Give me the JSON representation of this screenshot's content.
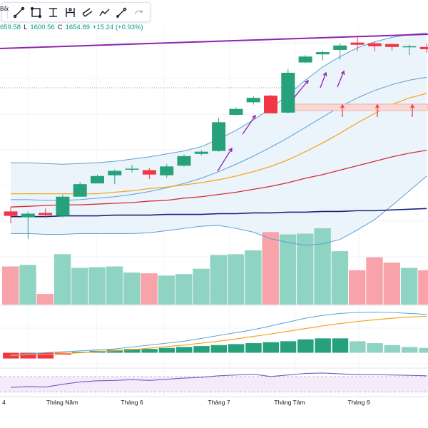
{
  "toolbar": {
    "cut_label": "Bắc",
    "tools": [
      "trend-line",
      "rectangle",
      "fib-retracement",
      "measure",
      "parallel-channel",
      "path",
      "brush",
      "redo"
    ]
  },
  "ohlc": {
    "o_val": "659.58",
    "l_key": "L",
    "l_val": "1600.56",
    "c_key": "C",
    "c_val": "1654.89",
    "change": "+15.24 (+0.93%)"
  },
  "colors": {
    "up": "#26a17b",
    "down": "#f23645",
    "vol_up": "#8fd3c3",
    "vol_down": "#f7a3a9",
    "bb_fill": "#eaf3fb",
    "bb_line": "#5b9fd6",
    "ma_orange": "#f5a623",
    "ma_red": "#d32f2f",
    "ma_navy": "#1a237e",
    "trend_purple": "#8e24aa"
  },
  "chart_data": {
    "type": "candlestick",
    "xlabels": [
      "4",
      "Tháng Năm",
      "Tháng 6",
      "Tháng 7",
      "Tháng Tám",
      "Tháng 9"
    ],
    "candles": [
      {
        "o": 1252,
        "h": 1258,
        "l": 1236,
        "c": 1246,
        "v": 50
      },
      {
        "o": 1244,
        "h": 1252,
        "l": 1215,
        "c": 1249,
        "v": 52
      },
      {
        "o": 1250,
        "h": 1256,
        "l": 1243,
        "c": 1247,
        "v": 14
      },
      {
        "o": 1246,
        "h": 1275,
        "l": 1244,
        "c": 1272,
        "v": 66
      },
      {
        "o": 1272,
        "h": 1292,
        "l": 1272,
        "c": 1289,
        "v": 48
      },
      {
        "o": 1290,
        "h": 1302,
        "l": 1290,
        "c": 1300,
        "v": 49
      },
      {
        "o": 1301,
        "h": 1309,
        "l": 1289,
        "c": 1307,
        "v": 50
      },
      {
        "o": 1309,
        "h": 1315,
        "l": 1305,
        "c": 1310,
        "v": 42
      },
      {
        "o": 1308,
        "h": 1311,
        "l": 1296,
        "c": 1302,
        "v": 41
      },
      {
        "o": 1301,
        "h": 1316,
        "l": 1298,
        "c": 1313,
        "v": 38
      },
      {
        "o": 1314,
        "h": 1329,
        "l": 1313,
        "c": 1327,
        "v": 40
      },
      {
        "o": 1330,
        "h": 1335,
        "l": 1328,
        "c": 1333,
        "v": 47
      },
      {
        "o": 1334,
        "h": 1379,
        "l": 1333,
        "c": 1373,
        "v": 65
      },
      {
        "o": 1383,
        "h": 1393,
        "l": 1382,
        "c": 1391,
        "v": 66
      },
      {
        "o": 1400,
        "h": 1408,
        "l": 1397,
        "c": 1406,
        "v": 71
      },
      {
        "o": 1409,
        "h": 1410,
        "l": 1386,
        "c": 1385,
        "v": 95
      },
      {
        "o": 1386,
        "h": 1445,
        "l": 1385,
        "c": 1440,
        "v": 92
      },
      {
        "o": 1454,
        "h": 1464,
        "l": 1453,
        "c": 1462,
        "v": 93
      },
      {
        "o": 1465,
        "h": 1470,
        "l": 1457,
        "c": 1468,
        "v": 100
      },
      {
        "o": 1471,
        "h": 1480,
        "l": 1458,
        "c": 1477,
        "v": 70
      },
      {
        "o": 1481,
        "h": 1488,
        "l": 1469,
        "c": 1478,
        "v": 45
      },
      {
        "o": 1480,
        "h": 1482,
        "l": 1469,
        "c": 1476,
        "v": 62
      },
      {
        "o": 1479,
        "h": 1480,
        "l": 1470,
        "c": 1475,
        "v": 55
      },
      {
        "o": 1475,
        "h": 1478,
        "l": 1464,
        "c": 1476,
        "v": 48
      },
      {
        "o": 1475,
        "h": 1480,
        "l": 1467,
        "c": 1472,
        "v": 45
      }
    ],
    "bollinger": {
      "upper": [
        1318,
        1318,
        1317,
        1316,
        1317,
        1318,
        1320,
        1323,
        1326,
        1330,
        1334,
        1340,
        1350,
        1362,
        1376,
        1392,
        1410,
        1430,
        1448,
        1462,
        1474,
        1482,
        1488,
        1492,
        1494
      ],
      "middle": [
        1268,
        1268,
        1267,
        1267,
        1268,
        1270,
        1272,
        1275,
        1279,
        1284,
        1290,
        1297,
        1306,
        1316,
        1327,
        1339,
        1352,
        1366,
        1380,
        1394,
        1406,
        1416,
        1424,
        1430,
        1434
      ],
      "lower": [
        1222,
        1222,
        1221,
        1221,
        1222,
        1222,
        1222,
        1222,
        1223,
        1226,
        1229,
        1232,
        1233,
        1229,
        1224,
        1215,
        1210,
        1206,
        1208,
        1214,
        1227,
        1241,
        1260,
        1280,
        1300
      ]
    },
    "ma_orange": [
      1276,
      1276,
      1276,
      1276,
      1276,
      1276,
      1278,
      1280,
      1283,
      1285,
      1288,
      1291,
      1295,
      1300,
      1306,
      1313,
      1322,
      1333,
      1345,
      1358,
      1372,
      1385,
      1397,
      1406,
      1412
    ],
    "ma_red": [
      1258,
      1259,
      1260,
      1261,
      1261,
      1262,
      1263,
      1264,
      1266,
      1267,
      1270,
      1272,
      1275,
      1278,
      1282,
      1286,
      1291,
      1297,
      1302,
      1308,
      1314,
      1320,
      1326,
      1331,
      1335
    ],
    "ma_navy": [
      1245,
      1245,
      1245,
      1246,
      1246,
      1246,
      1247,
      1247,
      1247,
      1248,
      1248,
      1248,
      1249,
      1249,
      1250,
      1250,
      1251,
      1251,
      1252,
      1252,
      1253,
      1253,
      1254,
      1255,
      1256
    ],
    "macd_hist": [
      -3,
      -3,
      -3,
      -1,
      0.5,
      1,
      1.5,
      2,
      2,
      2.5,
      3,
      3.5,
      4,
      4.5,
      5,
      5.5,
      6,
      7,
      7.5,
      7.5,
      6,
      5,
      4,
      3,
      2.5
    ],
    "macd_line": [
      -1,
      -0.5,
      0,
      0.5,
      1,
      1.5,
      2,
      3,
      4,
      5,
      6,
      7.5,
      9,
      10.5,
      12,
      14,
      16,
      18,
      19.5,
      20.5,
      21,
      21.2,
      21,
      20.5,
      20
    ],
    "macd_signal": [
      -1.5,
      -1,
      -0.8,
      -0.5,
      0,
      0.5,
      1,
      1.6,
      2.4,
      3.2,
      4,
      5,
      6,
      7.2,
      8.5,
      9.8,
      11.2,
      12.6,
      14,
      15.2,
      16.3,
      17.2,
      18,
      18.6,
      19
    ],
    "rsi": [
      42,
      44,
      43,
      50,
      56,
      59,
      60,
      62,
      60,
      63,
      66,
      68,
      72,
      74,
      76,
      70,
      74,
      78,
      79,
      77,
      75,
      75,
      74,
      73,
      72
    ]
  }
}
